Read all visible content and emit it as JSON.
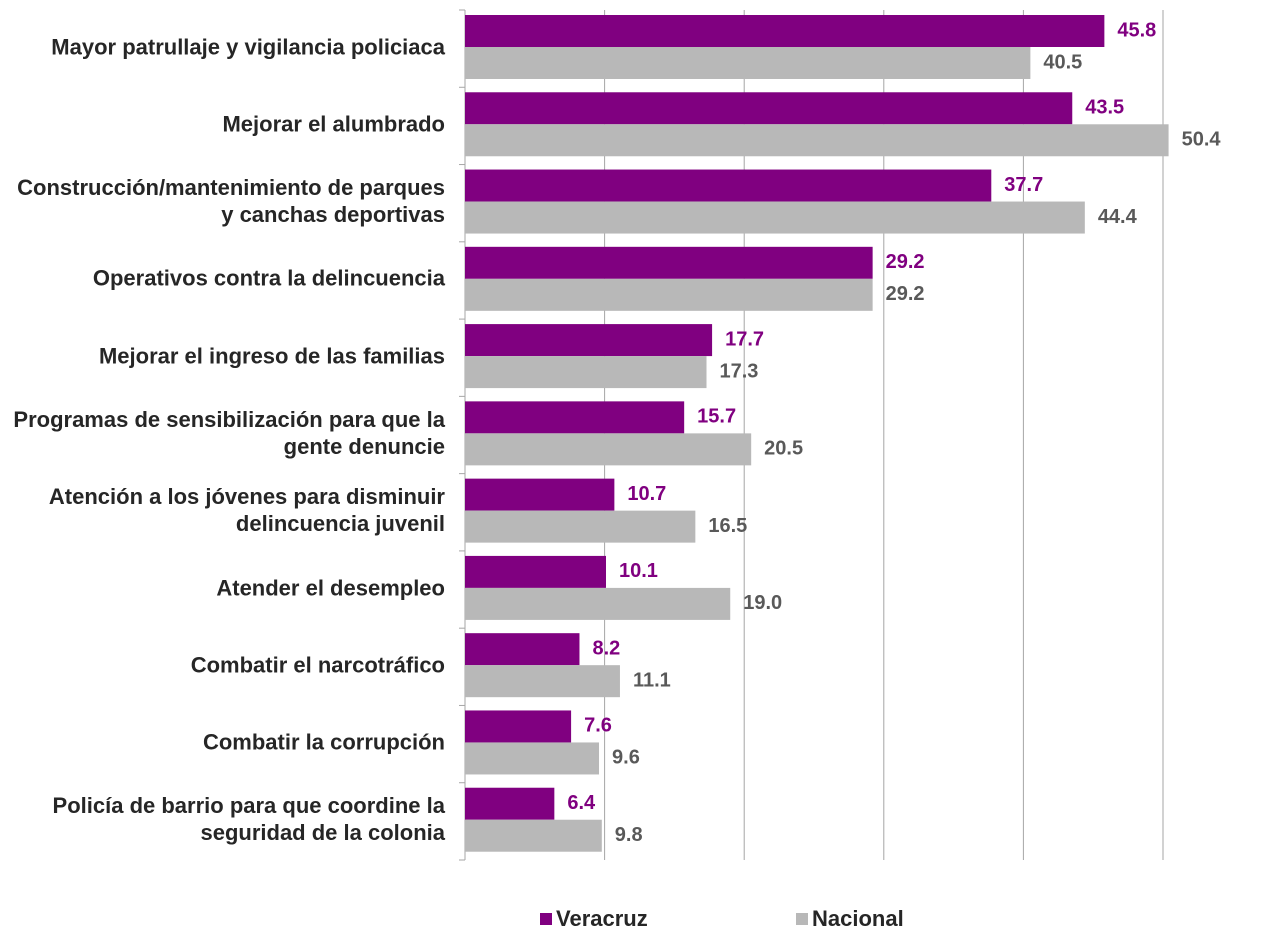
{
  "chart_data": {
    "type": "bar",
    "orientation": "horizontal",
    "categories": [
      "Mayor patrullaje y vigilancia policiaca",
      "Mejorar el alumbrado",
      "Construcción/mantenimiento de parques y canchas deportivas",
      "Operativos contra la delincuencia",
      "Mejorar el ingreso de las familias",
      "Programas de sensibilización para que la gente denuncie",
      "Atención a los jóvenes para disminuir delincuencia juvenil",
      "Atender el desempleo",
      "Combatir el narcotráfico",
      "Combatir la corrupción",
      "Policía de barrio para que coordine la seguridad de la colonia"
    ],
    "series": [
      {
        "name": "Veracruz",
        "color": "#800080",
        "values": [
          45.8,
          43.5,
          37.7,
          29.2,
          17.7,
          15.7,
          10.7,
          10.1,
          8.2,
          7.6,
          6.4
        ]
      },
      {
        "name": "Nacional",
        "color": "#b8b8b8",
        "values": [
          40.5,
          50.4,
          44.4,
          29.2,
          17.3,
          20.5,
          16.5,
          19.0,
          11.1,
          9.6,
          9.8
        ],
        "value_labels": [
          "40.5",
          "50.4",
          "44.4",
          "29.2",
          "17.3",
          "20.5",
          "16.5",
          "19.0",
          "11.1",
          "9.6",
          "9.8"
        ]
      }
    ],
    "xlim": [
      0,
      50
    ],
    "xticks": [
      0,
      10,
      20,
      30,
      40,
      50
    ],
    "grid": true,
    "legend": "bottom"
  }
}
